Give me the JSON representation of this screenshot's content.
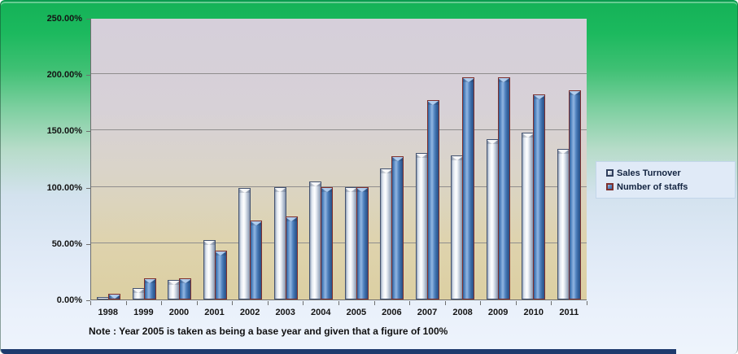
{
  "chart_data": {
    "type": "bar",
    "title": "",
    "categories": [
      "1998",
      "1999",
      "2000",
      "2001",
      "2002",
      "2003",
      "2004",
      "2005",
      "2006",
      "2007",
      "2008",
      "2009",
      "2010",
      "2011"
    ],
    "series": [
      {
        "name": "Sales Turnover",
        "color": "#dfe5ee",
        "values": [
          2,
          10,
          17,
          53,
          99,
          100,
          105,
          100,
          116,
          130,
          128,
          142,
          148,
          134
        ]
      },
      {
        "name": "Number of staffs",
        "color": "#4f81bd",
        "values": [
          5,
          19,
          19,
          43,
          70,
          74,
          100,
          100,
          127,
          177,
          197,
          197,
          182,
          186
        ]
      }
    ],
    "ylim": [
      0,
      250
    ],
    "ytick_step": 50,
    "ytick_labels": [
      "250.00%",
      "200.00%",
      "150.00%",
      "100.00%",
      "50.00%",
      "0.00%"
    ],
    "grid": true,
    "legend_position": "right",
    "plot_background": "lavender-to-tan gradient",
    "page_background": "green-to-lightblue gradient"
  },
  "legend": {
    "items": [
      {
        "label": "Sales Turnover",
        "icon": "silver-square-icon"
      },
      {
        "label": "Number of staffs",
        "icon": "blue-square-icon"
      }
    ]
  },
  "note": "Note : Year 2005  is taken as being a base year and given that a figure of 100%",
  "colors": {
    "sales_bar": "#dfe5ee",
    "staffs_bar": "#4f81bd",
    "staffs_outline": "#7e302d",
    "gridline": "#8f8d8d",
    "bottom_strip": "#1d3a6d"
  }
}
